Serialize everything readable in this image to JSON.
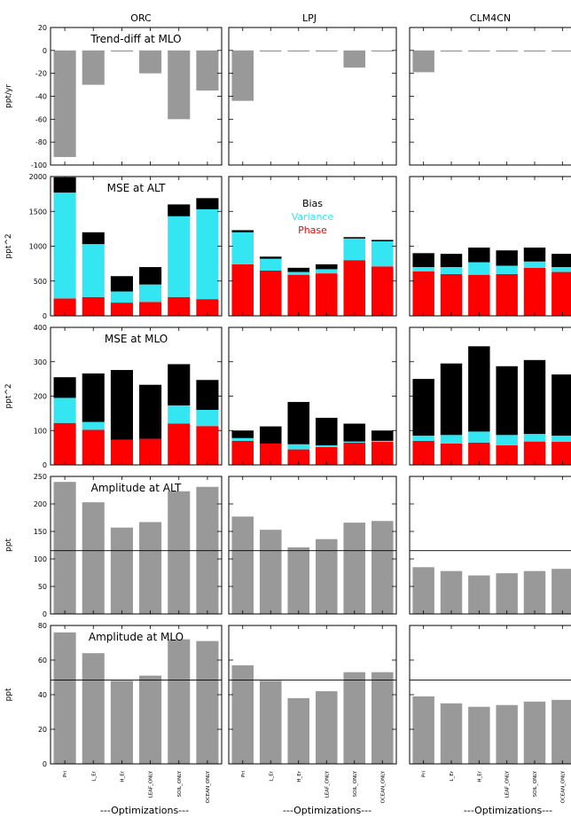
{
  "figure": {
    "columns": [
      "ORC",
      "LPJ",
      "CLM4CN"
    ],
    "x_categories": [
      "Pri",
      "L_Er",
      "H_Er",
      "LEAF_ONLY",
      "SOIL_ONLY",
      "OCEAN_ONLY"
    ],
    "xlabel": "---Optimizations---"
  },
  "colors": {
    "bar_gray": "#999999",
    "bias": "#000000",
    "variance": "#33e6f2",
    "phase": "#ff0000",
    "axis": "#000000"
  },
  "chart_data": [
    {
      "type": "bar",
      "row": 0,
      "title": "Trend-diff at MLO",
      "ylabel": "ppt/yr",
      "ylim": [
        -100,
        20
      ],
      "yticks": [
        20,
        0,
        -20,
        -40,
        -60,
        -80,
        -100
      ],
      "panels": [
        {
          "column": "ORC",
          "values": [
            -93,
            -30,
            -1,
            -20,
            -60,
            -35
          ]
        },
        {
          "column": "LPJ",
          "values": [
            -44,
            -1,
            -1,
            -1,
            -15,
            -1
          ]
        },
        {
          "column": "CLM4CN",
          "values": [
            -19,
            -1,
            -1,
            -1,
            -1,
            -1
          ]
        }
      ]
    },
    {
      "type": "stacked_bar",
      "row": 1,
      "title": "MSE at ALT",
      "ylabel": "ppt^2",
      "ylim": [
        0,
        2000
      ],
      "yticks": [
        2000,
        1500,
        1000,
        500,
        0
      ],
      "legend": {
        "column": "LPJ",
        "entries": [
          "Bias",
          "Variance",
          "Phase"
        ]
      },
      "series_names": [
        "Phase",
        "Variance",
        "Bias"
      ],
      "panels": [
        {
          "column": "ORC",
          "phase": [
            250,
            270,
            190,
            200,
            270,
            240
          ],
          "variance": [
            1520,
            760,
            160,
            250,
            1160,
            1290
          ],
          "bias": [
            220,
            170,
            220,
            250,
            170,
            160
          ]
        },
        {
          "column": "LPJ",
          "phase": [
            740,
            650,
            590,
            610,
            800,
            710
          ],
          "variance": [
            460,
            170,
            40,
            60,
            310,
            360
          ],
          "bias": [
            30,
            30,
            60,
            70,
            20,
            20
          ]
        },
        {
          "column": "CLM4CN",
          "phase": [
            640,
            600,
            590,
            600,
            690,
            630
          ],
          "variance": [
            60,
            100,
            180,
            120,
            90,
            70
          ],
          "bias": [
            200,
            190,
            210,
            220,
            200,
            190
          ]
        }
      ]
    },
    {
      "type": "stacked_bar",
      "row": 2,
      "title": "MSE at MLO",
      "ylabel": "ppt^2",
      "ylim": [
        0,
        400
      ],
      "yticks": [
        400,
        300,
        200,
        100,
        0
      ],
      "series_names": [
        "Phase",
        "Variance",
        "Bias"
      ],
      "panels": [
        {
          "column": "ORC",
          "phase": [
            122,
            102,
            73,
            76,
            120,
            113
          ],
          "variance": [
            73,
            23,
            0,
            0,
            53,
            47
          ],
          "bias": [
            60,
            141,
            203,
            157,
            120,
            87
          ]
        },
        {
          "column": "LPJ",
          "phase": [
            70,
            62,
            45,
            52,
            65,
            67
          ],
          "variance": [
            8,
            0,
            15,
            5,
            3,
            3
          ],
          "bias": [
            22,
            50,
            123,
            80,
            52,
            30
          ]
        },
        {
          "column": "CLM4CN",
          "phase": [
            70,
            62,
            65,
            57,
            68,
            67
          ],
          "variance": [
            15,
            25,
            32,
            30,
            22,
            18
          ],
          "bias": [
            165,
            208,
            248,
            200,
            215,
            178
          ]
        }
      ]
    },
    {
      "type": "bar",
      "row": 3,
      "title": "Amplitude at ALT",
      "ylabel": "ppt",
      "ylim": [
        0,
        250
      ],
      "yticks": [
        250,
        200,
        150,
        100,
        50,
        0
      ],
      "reference_line": 115,
      "panels": [
        {
          "column": "ORC",
          "values": [
            240,
            203,
            157,
            167,
            223,
            231
          ]
        },
        {
          "column": "LPJ",
          "values": [
            177,
            153,
            121,
            136,
            166,
            169
          ]
        },
        {
          "column": "CLM4CN",
          "values": [
            85,
            78,
            70,
            74,
            78,
            82
          ]
        }
      ]
    },
    {
      "type": "bar",
      "row": 4,
      "title": "Amplitude at MLO",
      "ylabel": "ppt",
      "ylim": [
        0,
        80
      ],
      "yticks": [
        80,
        60,
        40,
        20,
        0
      ],
      "reference_line": 48.5,
      "panels": [
        {
          "column": "ORC",
          "values": [
            76,
            64,
            48,
            51,
            72,
            71
          ]
        },
        {
          "column": "LPJ",
          "values": [
            57,
            48,
            38,
            42,
            53,
            53
          ]
        },
        {
          "column": "CLM4CN",
          "values": [
            39,
            35,
            33,
            34,
            36,
            37
          ]
        }
      ]
    }
  ]
}
